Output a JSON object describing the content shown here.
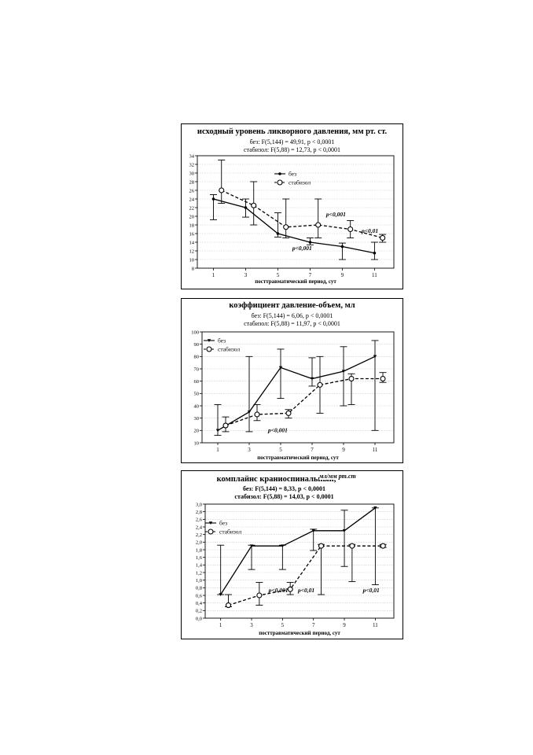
{
  "chart_data": [
    {
      "type": "line",
      "title": "исходный уровень ликворного давления, мм рт. ст.",
      "stats": [
        "без: F(5,144) = 49,91, p < 0,0001",
        "стабизол: F(5,88) = 12,73, p < 0,0001"
      ],
      "xlabel": "посттравматический период, сут",
      "ylabel": "",
      "x": [
        1,
        3,
        5,
        7,
        9,
        11
      ],
      "xlim": [
        0,
        12.2
      ],
      "ylim": [
        8,
        34
      ],
      "yticks": [
        "8",
        "10",
        "12",
        "14",
        "16",
        "18",
        "20",
        "22",
        "24",
        "26",
        "28",
        "30",
        "32",
        "34"
      ],
      "xticks": [
        "1",
        "3",
        "5",
        "7",
        "9",
        "11"
      ],
      "grid": true,
      "legend": "upper-center",
      "series": [
        {
          "name": "без",
          "style": "solid",
          "marker": "dot",
          "x": [
            1,
            3,
            5,
            7,
            9,
            11
          ],
          "values": [
            24,
            22,
            16,
            14,
            13,
            11.5
          ],
          "err_low": [
            19.2,
            19.8,
            15.2,
            13.4,
            10,
            10
          ],
          "err_high": [
            25,
            24,
            20.8,
            15,
            13.8,
            14
          ]
        },
        {
          "name": "стабизол",
          "style": "dashed",
          "marker": "circle",
          "x": [
            1.5,
            3.5,
            5.5,
            7.5,
            9.5,
            11.5
          ],
          "values": [
            26,
            22.5,
            17.5,
            18,
            17,
            15
          ],
          "err_low": [
            23,
            18,
            15,
            15,
            15,
            14
          ],
          "err_high": [
            33,
            28,
            24,
            24,
            19,
            15.8
          ]
        }
      ],
      "annotations": [
        {
          "text": "p<0,001",
          "x": 8,
          "y": 20
        },
        {
          "text": "p<0,01",
          "x": 10.2,
          "y": 16.2
        },
        {
          "text": "p<0,001",
          "x": 5.9,
          "y": 12.2
        }
      ]
    },
    {
      "type": "line",
      "title": "коэффициент давление-объем, мл",
      "stats": [
        "без: F(5,144) = 6,06, p < 0,0001",
        "стабизол: F(5,88) = 11,97, p < 0,0001"
      ],
      "xlabel": "посттравматический период, сут",
      "ylabel": "",
      "x": [
        1,
        3,
        5,
        7,
        9,
        11
      ],
      "xlim": [
        0,
        12.2
      ],
      "ylim": [
        10,
        100
      ],
      "yticks": [
        "10",
        "20",
        "30",
        "40",
        "50",
        "60",
        "70",
        "80",
        "90",
        "100"
      ],
      "xticks": [
        "1",
        "3",
        "5",
        "7",
        "9",
        "11"
      ],
      "grid": true,
      "legend": "upper-left",
      "series": [
        {
          "name": "без",
          "style": "solid",
          "marker": "triangle",
          "x": [
            1,
            3,
            5,
            7,
            9,
            11
          ],
          "values": [
            20,
            35,
            71,
            62,
            68,
            80
          ],
          "err_low": [
            16,
            19,
            46,
            56,
            40,
            20
          ],
          "err_high": [
            41,
            80,
            86,
            79,
            88,
            93
          ]
        },
        {
          "name": "стабизол",
          "style": "dashed",
          "marker": "circle",
          "x": [
            1.5,
            3.5,
            5.5,
            7.5,
            9.5,
            11.5
          ],
          "values": [
            24,
            33,
            34,
            57,
            62,
            62
          ],
          "err_low": [
            19,
            28,
            30,
            34,
            41,
            59
          ],
          "err_high": [
            31,
            41,
            37,
            80,
            66,
            67
          ]
        }
      ],
      "annotations": [
        {
          "text": "p<0,001",
          "x": 4.2,
          "y": 18.5
        }
      ]
    },
    {
      "type": "line",
      "title": "комплайнс краниоспинальный,",
      "unit": "мл/мм рт.ст",
      "stats": [
        "без: F(5,144) = 8,33, p < 0,0001",
        "стабизол: F(5,88) = 14,03, p < 0,0001"
      ],
      "xlabel": "посттравматический период, сут",
      "ylabel": "",
      "x": [
        1,
        3,
        5,
        7,
        9,
        11
      ],
      "xlim": [
        0,
        12.2
      ],
      "ylim": [
        0,
        3
      ],
      "yticks": [
        "0,0",
        "0,2",
        "0,4",
        "0,6",
        "0,8",
        "1,0",
        "1,2",
        "1,4",
        "1,6",
        "1,8",
        "2,0",
        "2,2",
        "2,4",
        "2,6",
        "2,8",
        "3,0"
      ],
      "xticks": [
        "1",
        "3",
        "5",
        "7",
        "9",
        "11"
      ],
      "grid": true,
      "legend": "upper-left",
      "series": [
        {
          "name": "без",
          "style": "solid",
          "marker": "triangle",
          "x": [
            1,
            3,
            5,
            7,
            9,
            11
          ],
          "values": [
            0.62,
            1.9,
            1.9,
            2.3,
            2.3,
            2.9
          ],
          "err_low": [
            0.62,
            1.28,
            1.28,
            1.78,
            1.36,
            0.88
          ],
          "err_high": [
            1.92,
            1.92,
            1.92,
            2.34,
            2.84,
            2.9
          ]
        },
        {
          "name": "стабизол",
          "style": "dashed",
          "marker": "circle",
          "x": [
            1.5,
            3.5,
            5.5,
            7.5,
            9.5,
            11.5
          ],
          "values": [
            0.34,
            0.6,
            0.76,
            1.9,
            1.9,
            1.9
          ],
          "err_low": [
            0.3,
            0.34,
            0.62,
            0.62,
            0.96,
            1.86
          ],
          "err_high": [
            0.62,
            0.94,
            0.94,
            1.94,
            1.94,
            1.94
          ]
        }
      ],
      "annotations": [
        {
          "text": "p<0,001",
          "x": 4.1,
          "y": 0.68
        },
        {
          "text": "p<0,01",
          "x": 6.0,
          "y": 0.68
        },
        {
          "text": "p<0,01",
          "x": 10.2,
          "y": 0.68
        }
      ]
    }
  ]
}
